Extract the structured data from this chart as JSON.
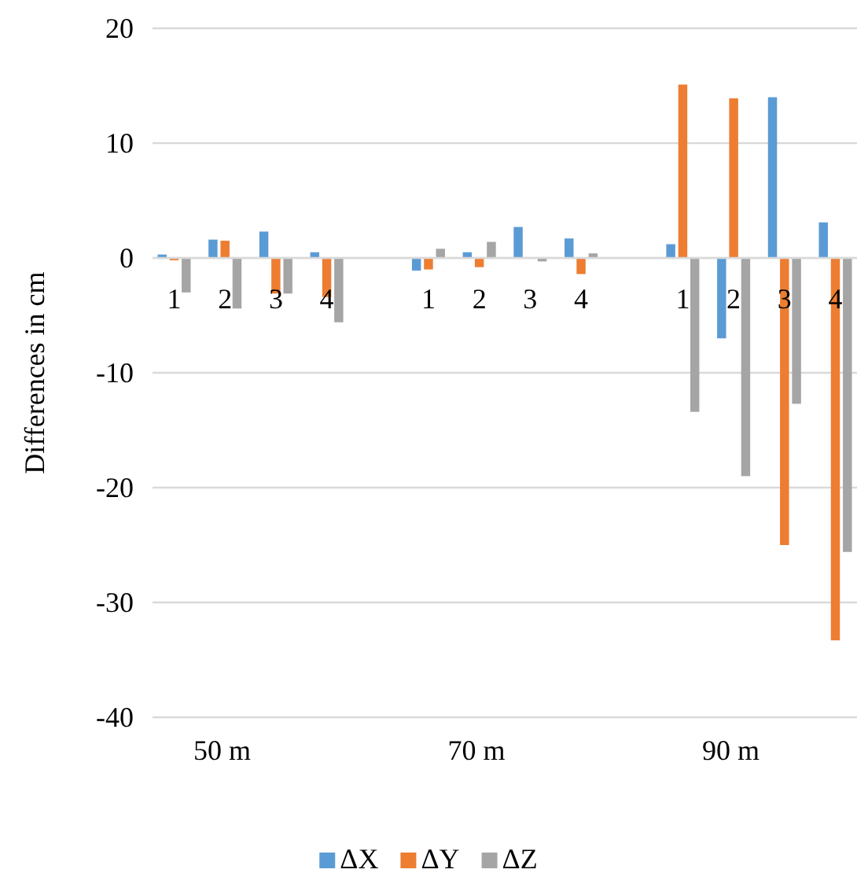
{
  "chart_data": {
    "type": "bar",
    "ylabel": "Differences in cm",
    "categories": [
      "1",
      "2",
      "3",
      "4",
      null,
      "1",
      "2",
      "3",
      "4",
      null,
      "1",
      "2",
      "3",
      "4"
    ],
    "annotations": [
      "50 m",
      "70 m",
      "90 m"
    ],
    "series": [
      {
        "name": "ΔX",
        "color": "#5b9bd5",
        "values": [
          0.3,
          1.6,
          2.3,
          0.5,
          null,
          -1.1,
          0.5,
          2.7,
          1.7,
          null,
          1.2,
          -7.0,
          14.0,
          3.1
        ]
      },
      {
        "name": "ΔY",
        "color": "#ed7d31",
        "values": [
          -0.2,
          1.5,
          -3.1,
          -3.4,
          null,
          -1.0,
          -0.8,
          0,
          -1.4,
          null,
          15.1,
          13.9,
          -25.0,
          -33.3
        ]
      },
      {
        "name": "ΔZ",
        "color": "#a5a5a5",
        "values": [
          -3.0,
          -4.4,
          -3.1,
          -5.6,
          null,
          0.8,
          1.4,
          -0.3,
          0.4,
          null,
          -13.4,
          -19.0,
          -12.7,
          -25.6
        ]
      }
    ],
    "ylim": [
      -40,
      20
    ],
    "yticks": [
      -40,
      -30,
      -20,
      -10,
      0,
      10,
      20
    ],
    "grid": "y",
    "legend": "bottom"
  }
}
